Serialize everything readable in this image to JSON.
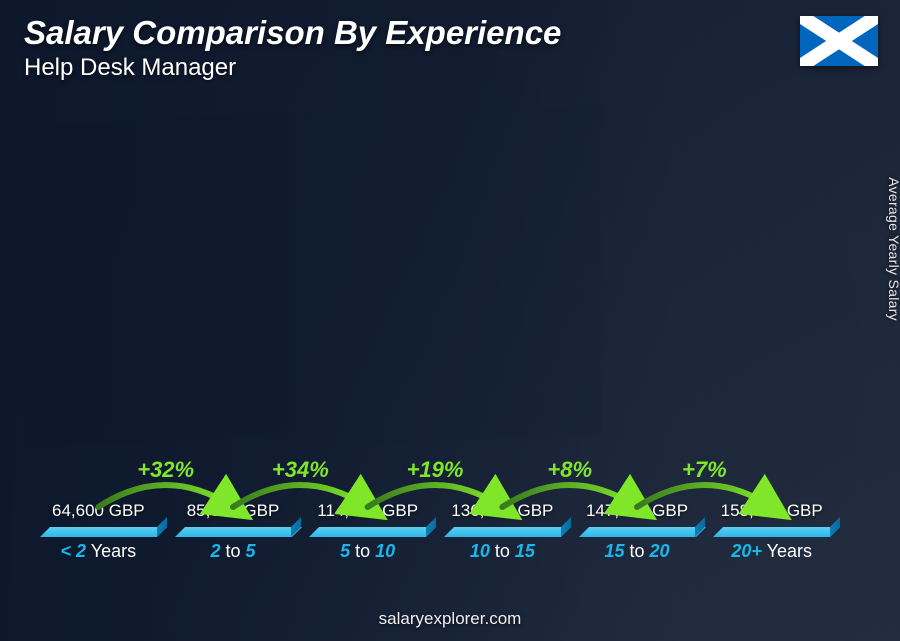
{
  "header": {
    "title": "Salary Comparison By Experience",
    "subtitle": "Help Desk Manager"
  },
  "flag": {
    "name": "scotland-flag",
    "bg": "#0065bd",
    "cross": "#ffffff"
  },
  "y_axis_label": "Average Yearly Salary",
  "footer": "salaryexplorer.com",
  "chart": {
    "type": "bar",
    "max_value": 158000,
    "bar_color_top": "#5ccff2",
    "bar_color_main": "#14a0db",
    "bar_color_side": "#086a9c",
    "background_overlay": "rgba(10,20,40,0.78)",
    "value_fontsize": 17,
    "value_color": "#ffffff",
    "cat_fontsize": 18,
    "cat_highlight_color": "#19b7ec",
    "cat_muted_color": "#ffffff",
    "pct_fontsize": 22,
    "arc_gradient_start": "#3a7a1f",
    "arc_gradient_end": "#7fe62a",
    "arrow_color": "#7fe62a",
    "bars": [
      {
        "cat_pre": "< 2",
        "cat_post": " Years",
        "value": 64600,
        "value_label": "64,600 GBP"
      },
      {
        "cat_pre": "2",
        "cat_mid": " to ",
        "cat_post": "5",
        "value": 85500,
        "value_label": "85,500 GBP",
        "pct": "+32%"
      },
      {
        "cat_pre": "5",
        "cat_mid": " to ",
        "cat_post": "10",
        "value": 114000,
        "value_label": "114,000 GBP",
        "pct": "+34%"
      },
      {
        "cat_pre": "10",
        "cat_mid": " to ",
        "cat_post": "15",
        "value": 136000,
        "value_label": "136,000 GBP",
        "pct": "+19%"
      },
      {
        "cat_pre": "15",
        "cat_mid": " to ",
        "cat_post": "20",
        "value": 147000,
        "value_label": "147,000 GBP",
        "pct": "+8%"
      },
      {
        "cat_pre": "20+",
        "cat_post": " Years",
        "value": 158000,
        "value_label": "158,000 GBP",
        "pct": "+7%"
      }
    ]
  }
}
